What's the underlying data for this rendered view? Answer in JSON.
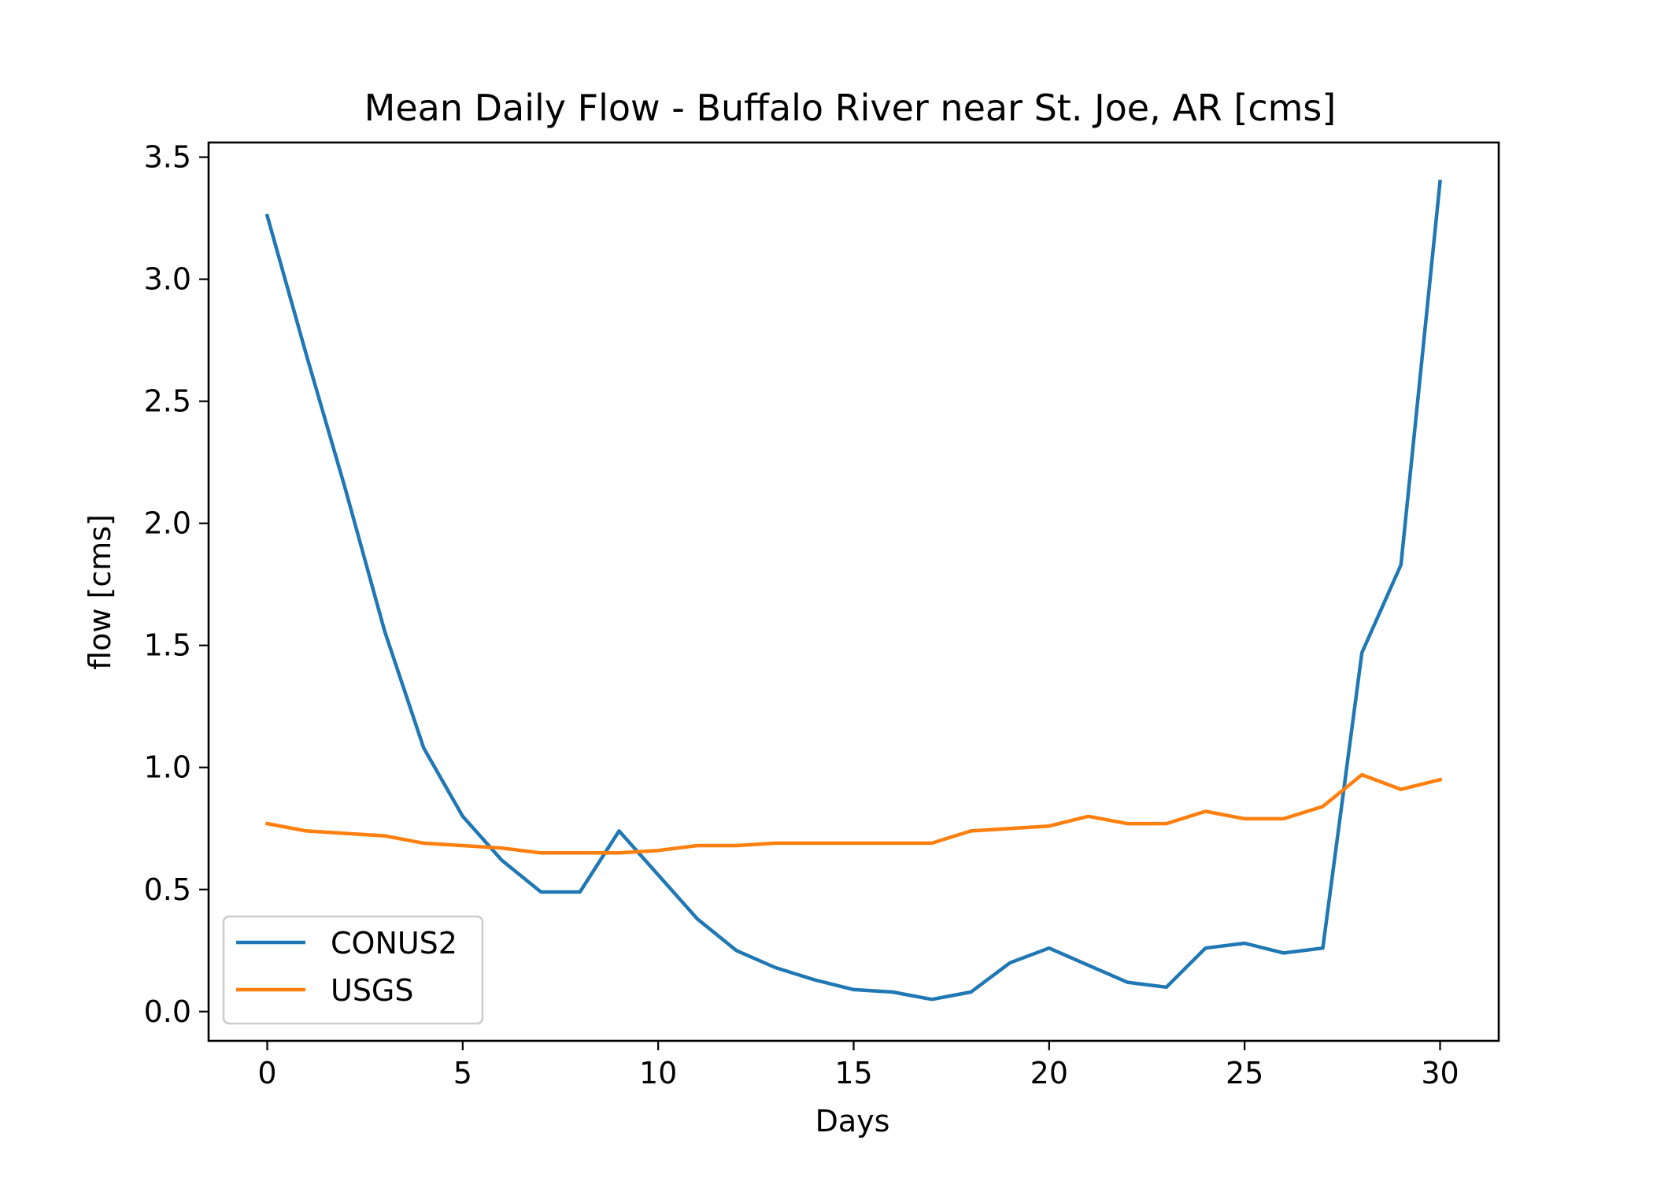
{
  "chart_data": {
    "type": "line",
    "title": "Mean Daily Flow - Buffalo River near St. Joe, AR [cms]",
    "xlabel": "Days",
    "ylabel": "flow [cms]",
    "xlim": [
      -1.5,
      31.5
    ],
    "ylim": [
      -0.12,
      3.56
    ],
    "xticks": [
      0,
      5,
      10,
      15,
      20,
      25,
      30
    ],
    "xtick_labels": [
      "0",
      "5",
      "10",
      "15",
      "20",
      "25",
      "30"
    ],
    "yticks": [
      0.0,
      0.5,
      1.0,
      1.5,
      2.0,
      2.5,
      3.0,
      3.5
    ],
    "ytick_labels": [
      "0.0",
      "0.5",
      "1.0",
      "1.5",
      "2.0",
      "2.5",
      "3.0",
      "3.5"
    ],
    "grid": false,
    "legend_position": "lower-left",
    "x": [
      0,
      1,
      2,
      3,
      4,
      5,
      6,
      7,
      8,
      9,
      10,
      11,
      12,
      13,
      14,
      15,
      16,
      17,
      18,
      19,
      20,
      21,
      22,
      23,
      24,
      25,
      26,
      27,
      28,
      29,
      30
    ],
    "series": [
      {
        "name": "CONUS2",
        "color": "#1f77b4",
        "values": [
          3.26,
          2.69,
          2.14,
          1.56,
          1.08,
          0.8,
          0.62,
          0.49,
          0.49,
          0.74,
          0.56,
          0.38,
          0.25,
          0.18,
          0.13,
          0.09,
          0.08,
          0.05,
          0.08,
          0.2,
          0.26,
          0.19,
          0.12,
          0.1,
          0.26,
          0.28,
          0.24,
          0.26,
          1.47,
          1.83,
          3.4
        ]
      },
      {
        "name": "USGS",
        "color": "#ff7f0e",
        "values": [
          0.77,
          0.74,
          0.73,
          0.72,
          0.69,
          0.68,
          0.67,
          0.65,
          0.65,
          0.65,
          0.66,
          0.68,
          0.68,
          0.69,
          0.69,
          0.69,
          0.69,
          0.69,
          0.74,
          0.75,
          0.76,
          0.8,
          0.77,
          0.77,
          0.82,
          0.79,
          0.79,
          0.84,
          0.97,
          0.91,
          0.95
        ]
      }
    ]
  }
}
